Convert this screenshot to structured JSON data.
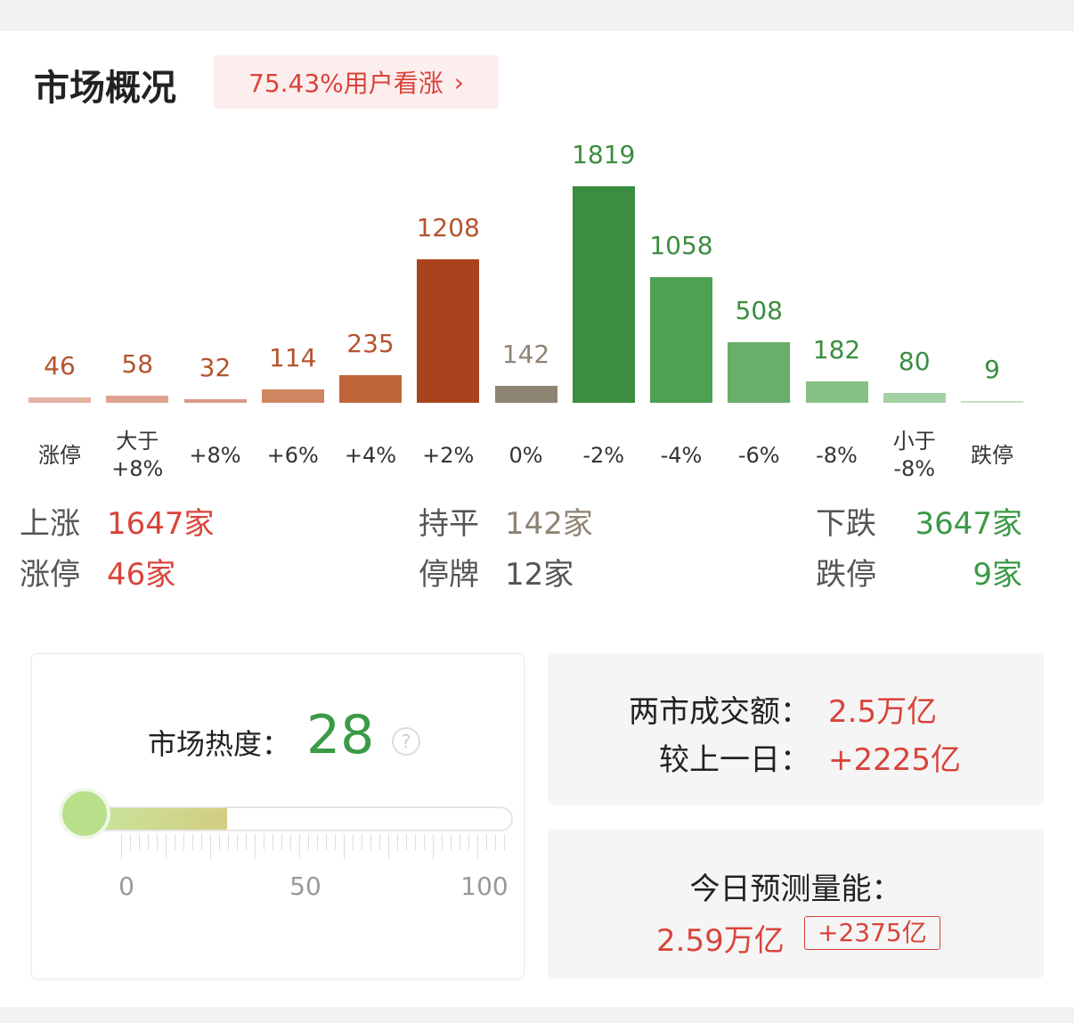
{
  "header": {
    "title": "市场概况",
    "sentiment": "75.43%用户看涨"
  },
  "chart_data": {
    "type": "bar",
    "categories": [
      "涨停",
      "大于\n+8%",
      "+8%",
      "+6%",
      "+4%",
      "+2%",
      "0%",
      "-2%",
      "-4%",
      "-6%",
      "-8%",
      "小于\n-8%",
      "跌停"
    ],
    "values": [
      46,
      58,
      32,
      114,
      235,
      1208,
      142,
      1819,
      1058,
      508,
      182,
      80,
      9
    ],
    "colors": [
      "#e3b3a3",
      "#dca48e",
      "#d69c84",
      "#cf8560",
      "#bf6639",
      "#a8431d",
      "#8e8474",
      "#3b8d3f",
      "#4fa053",
      "#6aae6b",
      "#86c185",
      "#a3d1a3",
      "#c4e0c4"
    ],
    "label_colors": [
      "#b5542e",
      "#b5542e",
      "#b5542e",
      "#b5542e",
      "#b5542e",
      "#b5542e",
      "#8e8474",
      "#3b8d3f",
      "#3b8d3f",
      "#3b8d3f",
      "#3b8d3f",
      "#3b8d3f",
      "#3b8d3f"
    ],
    "ylim": [
      0,
      2000
    ]
  },
  "summary": {
    "up": {
      "label": "上涨",
      "value": "1647家"
    },
    "flat": {
      "label": "持平",
      "value": "142家"
    },
    "down": {
      "label": "下跌",
      "value": "3647家"
    },
    "limit_up": {
      "label": "涨停",
      "value": "46家"
    },
    "suspended": {
      "label": "停牌",
      "value": "12家"
    },
    "limit_down": {
      "label": "跌停",
      "value": "9家"
    }
  },
  "heat": {
    "label": "市场热度：",
    "value": 28,
    "xlim": [
      0,
      100
    ],
    "ticks": [
      0,
      50,
      100
    ]
  },
  "turnover": {
    "label": "两市成交额：",
    "value": "2.5万亿",
    "change_label": "较上一日：",
    "change": "+2225亿"
  },
  "forecast": {
    "label": "今日预测量能：",
    "value": "2.59万亿",
    "change": "+2375亿"
  }
}
